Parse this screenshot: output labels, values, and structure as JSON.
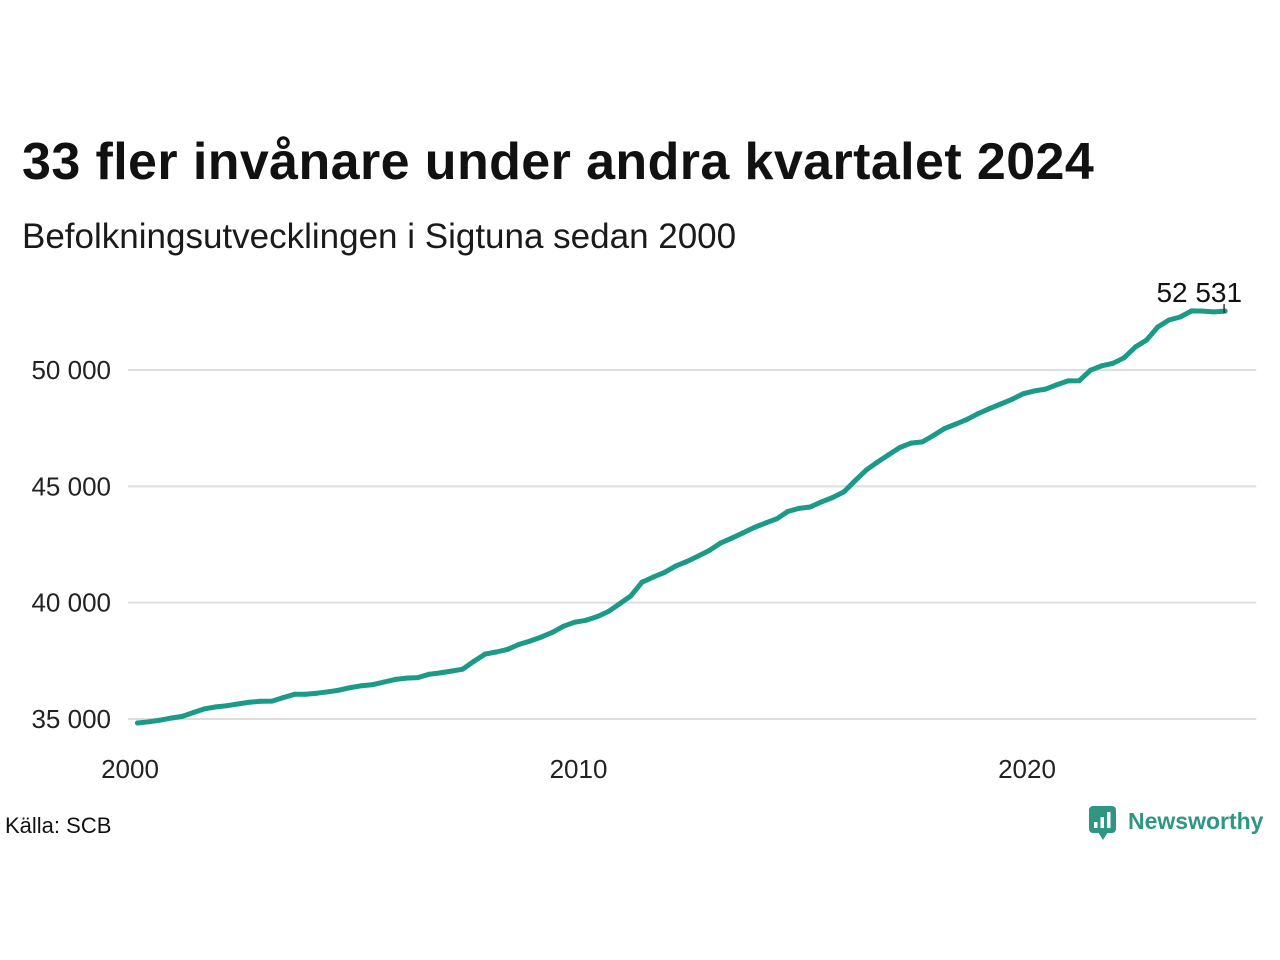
{
  "chart_data": {
    "type": "line",
    "title": "33 fler invånare under andra kvartalet 2024",
    "subtitle": "Befolkningsutvecklingen i Sigtuna sedan 2000",
    "x": [
      "2000-03",
      "2000-06",
      "2000-09",
      "2000-12",
      "2001-03",
      "2001-06",
      "2001-09",
      "2001-12",
      "2002-03",
      "2002-06",
      "2002-09",
      "2002-12",
      "2003-03",
      "2003-06",
      "2003-09",
      "2003-12",
      "2004-03",
      "2004-06",
      "2004-09",
      "2004-12",
      "2005-03",
      "2005-06",
      "2005-09",
      "2005-12",
      "2006-03",
      "2006-06",
      "2006-09",
      "2006-12",
      "2007-03",
      "2007-06",
      "2007-09",
      "2007-12",
      "2008-03",
      "2008-06",
      "2008-09",
      "2008-12",
      "2009-03",
      "2009-06",
      "2009-09",
      "2009-12",
      "2010-03",
      "2010-06",
      "2010-09",
      "2010-12",
      "2011-03",
      "2011-06",
      "2011-09",
      "2011-12",
      "2012-03",
      "2012-06",
      "2012-09",
      "2012-12",
      "2013-03",
      "2013-06",
      "2013-09",
      "2013-12",
      "2014-03",
      "2014-06",
      "2014-09",
      "2014-12",
      "2015-03",
      "2015-06",
      "2015-09",
      "2015-12",
      "2016-03",
      "2016-06",
      "2016-09",
      "2016-12",
      "2017-03",
      "2017-06",
      "2017-09",
      "2017-12",
      "2018-03",
      "2018-06",
      "2018-09",
      "2018-12",
      "2019-03",
      "2019-06",
      "2019-09",
      "2019-12",
      "2020-03",
      "2020-06",
      "2020-09",
      "2020-12",
      "2021-03",
      "2021-06",
      "2021-09",
      "2021-12",
      "2022-03",
      "2022-06",
      "2022-09",
      "2022-12",
      "2023-03",
      "2023-06",
      "2023-09",
      "2023-12",
      "2024-03",
      "2024-06"
    ],
    "series": [
      {
        "color": "#1b9a87",
        "values": [
          34830,
          34880,
          34950,
          35040,
          35110,
          35280,
          35440,
          35520,
          35570,
          35650,
          35720,
          35760,
          35770,
          35920,
          36060,
          36060,
          36110,
          36170,
          36240,
          36350,
          36430,
          36480,
          36590,
          36700,
          36760,
          36780,
          36920,
          36980,
          37060,
          37140,
          37480,
          37790,
          37880,
          37990,
          38200,
          38350,
          38520,
          38720,
          38990,
          39160,
          39240,
          39400,
          39620,
          39950,
          40290,
          40880,
          41100,
          41300,
          41570,
          41770,
          42000,
          42240,
          42560,
          42770,
          43000,
          43230,
          43420,
          43600,
          43920,
          44050,
          44110,
          44330,
          44520,
          44760,
          45240,
          45700,
          46040,
          46360,
          46670,
          46860,
          46910,
          47190,
          47490,
          47680,
          47880,
          48130,
          48340,
          48540,
          48740,
          48980,
          49100,
          49180,
          49370,
          49530,
          49540,
          49990,
          50180,
          50290,
          50530,
          50990,
          51290,
          51850,
          52150,
          52280,
          52540,
          52530,
          52498,
          52531
        ]
      }
    ],
    "x_ticks": [
      {
        "value": "2000-01",
        "label": "2000"
      },
      {
        "value": "2010-01",
        "label": "2010"
      },
      {
        "value": "2020-01",
        "label": "2020"
      }
    ],
    "y_ticks": [
      {
        "value": 35000,
        "label": "35 000"
      },
      {
        "value": 40000,
        "label": "40 000"
      },
      {
        "value": 45000,
        "label": "45 000"
      },
      {
        "value": 50000,
        "label": "50 000"
      }
    ],
    "xlim": [
      "2000-01",
      "2025-01"
    ],
    "ylim": [
      34700,
      52600
    ],
    "end_label": "52 531",
    "grid": "horizontal",
    "legend": "none",
    "source": "Källa: SCB"
  },
  "branding": {
    "logo_text": "Newsworthy",
    "logo_icon": "newsworthy-logo-icon",
    "color": "#2f9684"
  }
}
